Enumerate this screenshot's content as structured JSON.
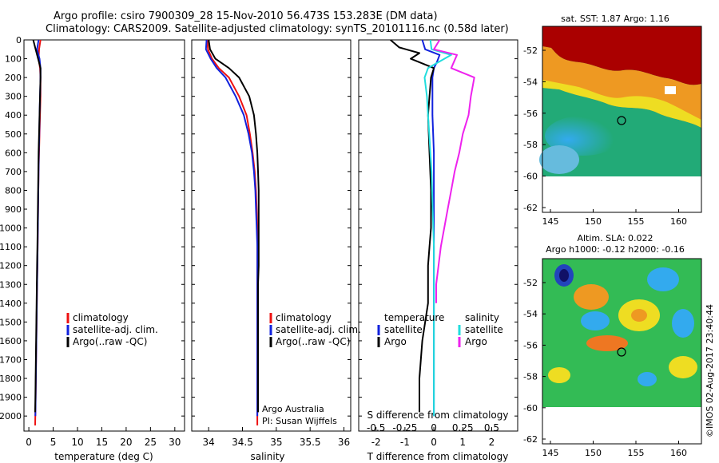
{
  "header": {
    "title_line1": "Argo profile: csiro 7900309_28 15-Nov-2010 56.473S 153.283E (DM data)",
    "title_line2": "Climatology: CARS2009. Satellite-adjusted climatology: synTS_20101116.nc (0.58d later)"
  },
  "colors": {
    "climatology": "#ee1111",
    "satellite": "#1122dd",
    "argo": "#000000",
    "salinity_satellite": "#22dddd",
    "salinity_argo": "#ee22ee"
  },
  "depth_axis": {
    "ticks": [
      0,
      100,
      200,
      300,
      400,
      500,
      600,
      700,
      800,
      900,
      1000,
      1100,
      1200,
      1300,
      1400,
      1500,
      1600,
      1700,
      1800,
      1900,
      2000
    ],
    "ylim": [
      0,
      2080
    ]
  },
  "chart_data": [
    {
      "type": "line",
      "name": "temperature-profile",
      "xlabel": "temperature (deg C)",
      "xlim": [
        -1,
        32
      ],
      "xticks": [
        0,
        5,
        10,
        15,
        20,
        25,
        30
      ],
      "legend": [
        "climatology",
        "satellite-adj. clim.",
        "Argo(..raw -QC)"
      ],
      "series": [
        {
          "name": "climatology",
          "color_key": "climatology",
          "x": [
            2.4,
            2.1,
            2.0,
            2.3,
            2.4,
            2.4,
            2.3,
            2.2,
            2.1,
            2.0,
            1.95,
            1.9,
            1.85,
            1.8,
            1.75,
            1.7,
            1.65,
            1.6,
            1.55,
            1.5,
            1.45,
            1.4,
            1.3
          ],
          "y": [
            0,
            50,
            100,
            150,
            200,
            300,
            400,
            500,
            600,
            700,
            800,
            900,
            1000,
            1100,
            1200,
            1300,
            1400,
            1500,
            1600,
            1700,
            1800,
            1900,
            2050
          ]
        },
        {
          "name": "satellite",
          "color_key": "satellite",
          "x": [
            2.0,
            1.7,
            2.2,
            2.4,
            2.4,
            2.3,
            2.2,
            2.15,
            2.05,
            2.0,
            1.95,
            1.9,
            1.85,
            1.8,
            1.75,
            1.7,
            1.65,
            1.6,
            1.55,
            1.5,
            1.45,
            1.4,
            1.35
          ],
          "y": [
            0,
            50,
            100,
            150,
            200,
            300,
            400,
            500,
            600,
            700,
            800,
            900,
            1000,
            1100,
            1200,
            1300,
            1400,
            1500,
            1600,
            1700,
            1800,
            1900,
            2000
          ]
        },
        {
          "name": "argo",
          "color_key": "argo",
          "x": [
            0.9,
            1.4,
            1.9,
            2.4,
            2.4,
            2.3,
            2.2,
            2.1,
            2.0,
            1.95,
            1.9,
            1.85,
            1.8,
            1.75,
            1.7,
            1.65,
            1.6,
            1.55,
            1.5,
            1.45,
            1.4,
            1.35,
            1.3
          ],
          "y": [
            0,
            50,
            100,
            150,
            200,
            300,
            400,
            500,
            600,
            700,
            800,
            900,
            1000,
            1100,
            1200,
            1300,
            1400,
            1500,
            1600,
            1700,
            1800,
            1900,
            1980
          ]
        }
      ]
    },
    {
      "type": "line",
      "name": "salinity-profile",
      "xlabel": "salinity",
      "xlim": [
        33.75,
        36.1
      ],
      "xticks": [
        34,
        34.5,
        35,
        35.5,
        36
      ],
      "xtick_labels": [
        "34",
        "34.5",
        "35",
        "35.5",
        "36"
      ],
      "legend": [
        "climatology",
        "satellite-adj. clim.",
        "Argo(..raw -QC)"
      ],
      "annotation": [
        "Argo Australia",
        "PI: Susan Wijffels"
      ],
      "series": [
        {
          "name": "climatology",
          "color_key": "climatology",
          "x": [
            33.98,
            33.99,
            34.05,
            34.15,
            34.3,
            34.45,
            34.56,
            34.61,
            34.65,
            34.68,
            34.7,
            34.71,
            34.72,
            34.72,
            34.72,
            34.72,
            34.72,
            34.72,
            34.72,
            34.72,
            34.72,
            34.72,
            34.72
          ],
          "y": [
            0,
            50,
            100,
            150,
            200,
            300,
            400,
            500,
            600,
            700,
            800,
            900,
            1000,
            1100,
            1200,
            1300,
            1400,
            1500,
            1600,
            1700,
            1800,
            1900,
            2050
          ]
        },
        {
          "name": "satellite",
          "color_key": "satellite",
          "x": [
            33.97,
            33.96,
            34.03,
            34.12,
            34.25,
            34.4,
            34.52,
            34.59,
            34.64,
            34.67,
            34.69,
            34.7,
            34.71,
            34.72,
            34.72,
            34.72,
            34.72,
            34.72,
            34.72,
            34.72,
            34.72,
            34.72,
            34.72
          ],
          "y": [
            0,
            50,
            100,
            150,
            200,
            300,
            400,
            500,
            600,
            700,
            800,
            900,
            1000,
            1100,
            1200,
            1300,
            1400,
            1500,
            1600,
            1700,
            1800,
            1900,
            2000
          ]
        },
        {
          "name": "argo",
          "color_key": "argo",
          "x": [
            34.0,
            34.02,
            34.1,
            34.3,
            34.45,
            34.6,
            34.67,
            34.7,
            34.72,
            34.73,
            34.74,
            34.74,
            34.74,
            34.74,
            34.74,
            34.73,
            34.73,
            34.73,
            34.73,
            34.73,
            34.73,
            34.73,
            34.73
          ],
          "y": [
            0,
            50,
            100,
            150,
            200,
            300,
            400,
            500,
            600,
            700,
            800,
            900,
            1000,
            1100,
            1200,
            1300,
            1400,
            1500,
            1600,
            1700,
            1800,
            1900,
            1980
          ]
        }
      ]
    },
    {
      "type": "line",
      "name": "difference-profile",
      "xlabel": "T difference from climatology",
      "xlabel_top": "S difference from climatology",
      "xlim": [
        -2.6,
        2.9
      ],
      "xticks_bottom": [
        -2,
        -1,
        0,
        1,
        2
      ],
      "xticks_top": [
        -0.5,
        -0.25,
        0,
        0.25,
        0.5
      ],
      "xtick_labels_top": [
        "-0.5",
        "-0.25",
        "0",
        "0.25",
        "0.5"
      ],
      "legend_temperature": {
        "heading": "temperature",
        "items": [
          "satellite",
          "Argo"
        ]
      },
      "legend_salinity": {
        "heading": "salinity",
        "items": [
          "satellite",
          "Argo"
        ]
      },
      "series": [
        {
          "name": "temperature satellite",
          "color_key": "satellite",
          "x": [
            -0.4,
            -0.3,
            0.2,
            0.1,
            0.0,
            -0.05,
            -0.05,
            -0.05,
            0.0,
            0.0,
            0.0,
            0.0,
            0.0,
            0.0,
            0.0,
            0.0,
            0.0,
            0.0,
            0.0,
            0.0,
            0.0,
            0.0
          ],
          "y": [
            0,
            50,
            80,
            120,
            150,
            200,
            300,
            400,
            600,
            800,
            1000,
            1100,
            1200,
            1300,
            1400,
            1500,
            1600,
            1700,
            1800,
            1900,
            1950,
            2000
          ]
        },
        {
          "name": "temperature argo",
          "color_key": "argo",
          "x": [
            -1.5,
            -1.2,
            -0.5,
            -0.8,
            0.0,
            -0.1,
            -0.15,
            -0.2,
            -0.15,
            -0.1,
            -0.1,
            -0.15,
            -0.2,
            -0.2,
            -0.2,
            -0.3,
            -0.4,
            -0.45,
            -0.5,
            -0.5,
            -0.5
          ],
          "y": [
            0,
            40,
            70,
            100,
            150,
            200,
            300,
            400,
            600,
            800,
            1000,
            1100,
            1200,
            1300,
            1400,
            1500,
            1600,
            1700,
            1800,
            1900,
            1980
          ]
        },
        {
          "name": "salinity satellite",
          "color_key": "salinity_satellite",
          "x": [
            -0.03,
            -0.02,
            0.15,
            -0.05,
            -0.08,
            -0.06,
            -0.05,
            -0.04,
            -0.02,
            -0.01,
            0.0,
            0.0,
            0.0,
            0.0,
            0.0,
            0.0,
            0.0
          ],
          "y": [
            0,
            50,
            80,
            150,
            200,
            300,
            400,
            500,
            700,
            900,
            1100,
            1300,
            1500,
            1600,
            1700,
            1800,
            2000
          ]
        },
        {
          "name": "salinity argo",
          "color_key": "salinity_argo",
          "x": [
            0.05,
            0.0,
            0.2,
            0.15,
            0.35,
            0.32,
            0.3,
            0.25,
            0.22,
            0.18,
            0.15,
            0.12,
            0.09,
            0.06,
            0.04,
            0.02,
            0.02
          ],
          "y": [
            0,
            50,
            80,
            150,
            200,
            300,
            400,
            500,
            600,
            700,
            800,
            900,
            1000,
            1100,
            1200,
            1300,
            1400
          ]
        }
      ]
    }
  ],
  "maps": {
    "sst": {
      "title": "sat. SST: 1.87 Argo: 1.16",
      "xticks": [
        "145",
        "150",
        "155",
        "160"
      ],
      "yticks": [
        "-52",
        "-54",
        "-56",
        "-58",
        "-60",
        "-62"
      ]
    },
    "sla": {
      "title1": "Altim. SLA: 0.022",
      "title2": "Argo h1000: -0.12 h2000: -0.16",
      "xticks": [
        "145",
        "150",
        "155",
        "160"
      ],
      "yticks": [
        "-52",
        "-54",
        "-56",
        "-58",
        "-60",
        "-62"
      ]
    }
  },
  "credit": "©IMOS 02-Aug-2017 23:40:44"
}
